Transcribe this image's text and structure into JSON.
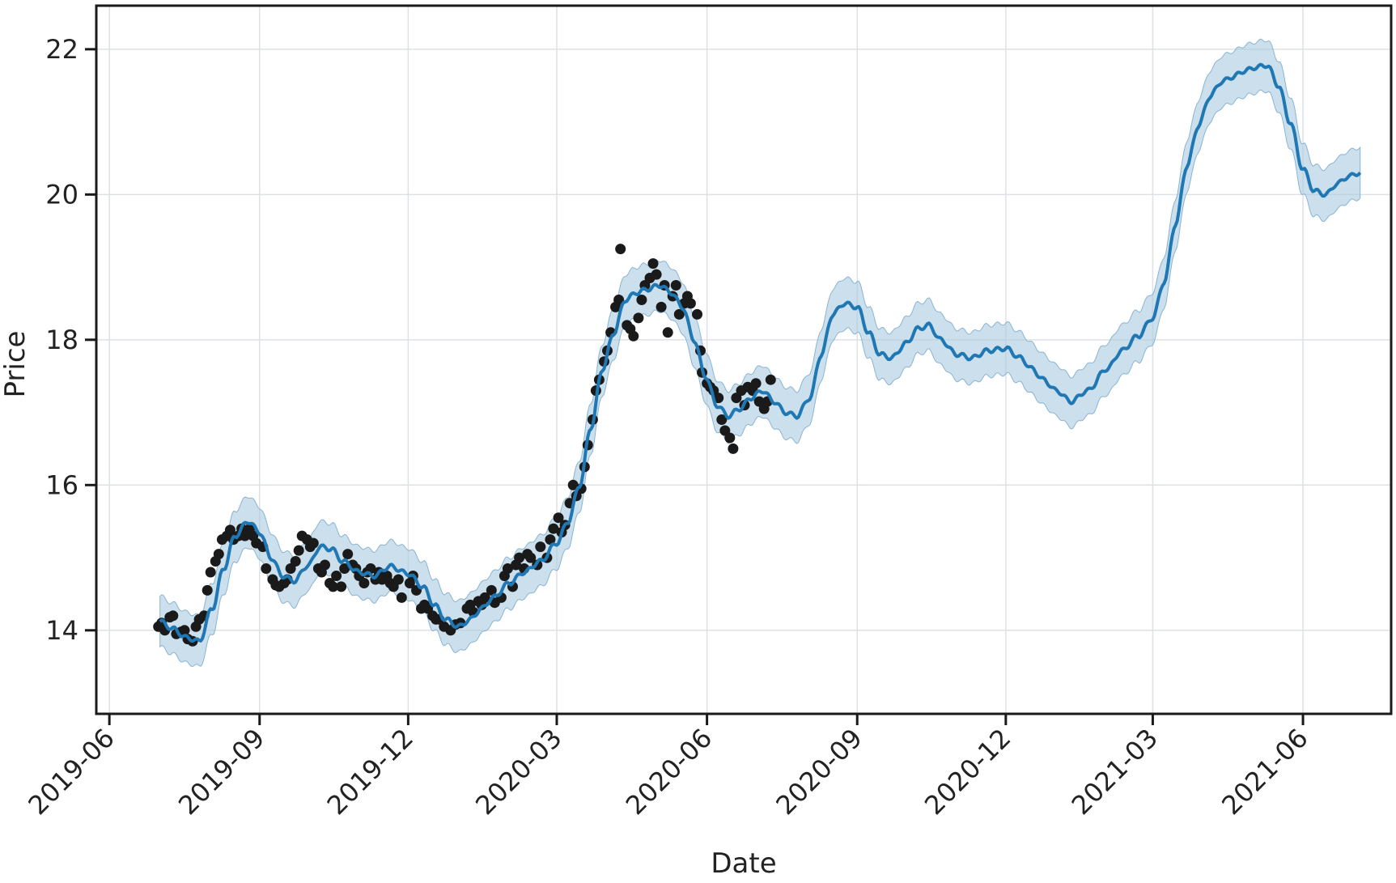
{
  "chart_data": {
    "type": "line",
    "xlabel": "Date",
    "ylabel": "Price",
    "x_ticks": [
      "2019-06",
      "2019-09",
      "2019-12",
      "2020-03",
      "2020-06",
      "2020-09",
      "2020-12",
      "2021-03",
      "2021-06"
    ],
    "y_ticks": [
      14,
      16,
      18,
      20,
      22
    ],
    "xlim": [
      "2019-05-24",
      "2021-07-25"
    ],
    "ylim": [
      12.85,
      22.6
    ],
    "grid": true,
    "legend": "none",
    "colors": {
      "forecast": "#1f77b4",
      "interval": "#a9cbe0",
      "observed": "#1a1a1a"
    },
    "series": [
      {
        "kind": "forecast_line",
        "x": [
          "2019-07-02",
          "2019-07-10",
          "2019-07-18",
          "2019-07-26",
          "2019-08-03",
          "2019-08-10",
          "2019-08-17",
          "2019-08-25",
          "2019-09-01",
          "2019-09-08",
          "2019-09-15",
          "2019-09-22",
          "2019-10-01",
          "2019-10-08",
          "2019-10-15",
          "2019-10-22",
          "2019-11-01",
          "2019-11-10",
          "2019-11-20",
          "2019-12-01",
          "2019-12-10",
          "2019-12-17",
          "2019-12-24",
          "2020-01-01",
          "2020-01-08",
          "2020-01-15",
          "2020-01-22",
          "2020-02-01",
          "2020-02-10",
          "2020-02-20",
          "2020-03-01",
          "2020-03-08",
          "2020-03-15",
          "2020-03-22",
          "2020-03-29",
          "2020-04-05",
          "2020-04-12",
          "2020-04-19",
          "2020-04-26",
          "2020-05-03",
          "2020-05-10",
          "2020-05-17",
          "2020-05-24",
          "2020-05-31",
          "2020-06-07",
          "2020-06-14",
          "2020-06-21",
          "2020-06-28",
          "2020-07-05",
          "2020-07-12",
          "2020-07-19",
          "2020-07-26",
          "2020-08-03",
          "2020-08-10",
          "2020-08-17",
          "2020-08-24",
          "2020-09-01",
          "2020-09-08",
          "2020-09-15",
          "2020-09-22",
          "2020-10-01",
          "2020-10-08",
          "2020-10-15",
          "2020-10-22",
          "2020-11-01",
          "2020-11-10",
          "2020-11-20",
          "2020-12-01",
          "2020-12-10",
          "2020-12-17",
          "2020-12-24",
          "2021-01-01",
          "2021-01-10",
          "2021-01-20",
          "2021-02-01",
          "2021-02-10",
          "2021-02-20",
          "2021-03-01",
          "2021-03-08",
          "2021-03-15",
          "2021-03-22",
          "2021-03-29",
          "2021-04-05",
          "2021-04-12",
          "2021-04-19",
          "2021-04-26",
          "2021-05-03",
          "2021-05-10",
          "2021-05-17",
          "2021-05-24",
          "2021-06-01",
          "2021-06-08",
          "2021-06-15",
          "2021-06-22",
          "2021-06-29",
          "2021-07-06"
        ],
        "y": [
          14.12,
          14.02,
          13.9,
          13.85,
          14.3,
          14.85,
          15.3,
          15.5,
          15.35,
          15.0,
          14.75,
          14.68,
          14.9,
          15.15,
          15.12,
          14.95,
          14.8,
          14.75,
          14.88,
          14.78,
          14.6,
          14.35,
          14.15,
          14.05,
          14.15,
          14.3,
          14.45,
          14.65,
          14.8,
          14.95,
          15.2,
          15.5,
          16.0,
          16.8,
          17.6,
          18.1,
          18.55,
          18.65,
          18.7,
          18.75,
          18.65,
          18.45,
          18.0,
          17.5,
          17.1,
          16.95,
          17.05,
          17.2,
          17.3,
          17.15,
          17.0,
          16.95,
          17.2,
          17.8,
          18.35,
          18.5,
          18.45,
          18.1,
          17.8,
          17.75,
          17.95,
          18.15,
          18.2,
          18.0,
          17.8,
          17.75,
          17.85,
          17.88,
          17.75,
          17.6,
          17.45,
          17.3,
          17.15,
          17.3,
          17.6,
          17.85,
          18.05,
          18.3,
          18.8,
          19.6,
          20.4,
          20.95,
          21.35,
          21.55,
          21.62,
          21.7,
          21.75,
          21.78,
          21.5,
          21.0,
          20.35,
          20.05,
          20.0,
          20.15,
          20.25,
          20.3
        ],
        "interval_halfwidth": 0.35
      },
      {
        "kind": "observed_points",
        "x": [
          "2019-07-01",
          "2019-07-03",
          "2019-07-05",
          "2019-07-08",
          "2019-07-10",
          "2019-07-12",
          "2019-07-15",
          "2019-07-17",
          "2019-07-19",
          "2019-07-22",
          "2019-07-24",
          "2019-07-26",
          "2019-07-29",
          "2019-07-31",
          "2019-08-02",
          "2019-08-05",
          "2019-08-07",
          "2019-08-09",
          "2019-08-12",
          "2019-08-14",
          "2019-08-16",
          "2019-08-19",
          "2019-08-21",
          "2019-08-23",
          "2019-08-26",
          "2019-08-28",
          "2019-08-30",
          "2019-09-03",
          "2019-09-05",
          "2019-09-09",
          "2019-09-11",
          "2019-09-13",
          "2019-09-16",
          "2019-09-18",
          "2019-09-20",
          "2019-09-23",
          "2019-09-25",
          "2019-09-27",
          "2019-09-30",
          "2019-10-02",
          "2019-10-04",
          "2019-10-07",
          "2019-10-09",
          "2019-10-11",
          "2019-10-14",
          "2019-10-16",
          "2019-10-18",
          "2019-10-21",
          "2019-10-23",
          "2019-10-25",
          "2019-10-28",
          "2019-10-30",
          "2019-11-01",
          "2019-11-04",
          "2019-11-06",
          "2019-11-08",
          "2019-11-11",
          "2019-11-13",
          "2019-11-15",
          "2019-11-18",
          "2019-11-20",
          "2019-11-22",
          "2019-11-25",
          "2019-11-27",
          "2019-12-02",
          "2019-12-04",
          "2019-12-06",
          "2019-12-09",
          "2019-12-11",
          "2019-12-13",
          "2019-12-16",
          "2019-12-18",
          "2019-12-20",
          "2019-12-23",
          "2019-12-27",
          "2019-12-30",
          "2020-01-02",
          "2020-01-06",
          "2020-01-08",
          "2020-01-10",
          "2020-01-13",
          "2020-01-15",
          "2020-01-17",
          "2020-01-21",
          "2020-01-23",
          "2020-01-27",
          "2020-01-29",
          "2020-01-31",
          "2020-02-03",
          "2020-02-05",
          "2020-02-07",
          "2020-02-10",
          "2020-02-12",
          "2020-02-14",
          "2020-02-18",
          "2020-02-20",
          "2020-02-24",
          "2020-02-26",
          "2020-02-28",
          "2020-03-02",
          "2020-03-04",
          "2020-03-06",
          "2020-03-09",
          "2020-03-11",
          "2020-03-13",
          "2020-03-16",
          "2020-03-18",
          "2020-03-20",
          "2020-03-23",
          "2020-03-25",
          "2020-03-27",
          "2020-03-30",
          "2020-04-01",
          "2020-04-03",
          "2020-04-06",
          "2020-04-08",
          "2020-04-09",
          "2020-04-13",
          "2020-04-15",
          "2020-04-17",
          "2020-04-20",
          "2020-04-22",
          "2020-04-24",
          "2020-04-27",
          "2020-04-29",
          "2020-05-01",
          "2020-05-04",
          "2020-05-06",
          "2020-05-08",
          "2020-05-11",
          "2020-05-13",
          "2020-05-15",
          "2020-05-18",
          "2020-05-20",
          "2020-05-22",
          "2020-05-26",
          "2020-05-28",
          "2020-05-29",
          "2020-06-01",
          "2020-06-03",
          "2020-06-05",
          "2020-06-08",
          "2020-06-10",
          "2020-06-12",
          "2020-06-15",
          "2020-06-17",
          "2020-06-19",
          "2020-06-22",
          "2020-06-24",
          "2020-06-26",
          "2020-06-29",
          "2020-07-01",
          "2020-07-03",
          "2020-07-06",
          "2020-07-08",
          "2020-07-10"
        ],
        "y": [
          14.05,
          14.1,
          14.0,
          14.18,
          14.2,
          13.95,
          13.98,
          14.0,
          13.88,
          13.85,
          14.05,
          14.15,
          14.2,
          14.55,
          14.8,
          14.95,
          15.05,
          15.25,
          15.3,
          15.38,
          15.25,
          15.3,
          15.4,
          15.3,
          15.4,
          15.3,
          15.2,
          15.15,
          14.85,
          14.7,
          14.62,
          14.6,
          14.65,
          14.7,
          14.85,
          14.95,
          15.1,
          15.3,
          15.25,
          15.15,
          15.2,
          14.85,
          14.8,
          14.9,
          14.65,
          14.6,
          14.75,
          14.6,
          14.85,
          15.05,
          14.9,
          14.85,
          14.75,
          14.65,
          14.8,
          14.85,
          14.7,
          14.8,
          14.7,
          14.75,
          14.65,
          14.6,
          14.7,
          14.45,
          14.65,
          14.75,
          14.55,
          14.3,
          14.35,
          14.3,
          14.2,
          14.15,
          14.15,
          14.05,
          14.0,
          14.08,
          14.1,
          14.3,
          14.35,
          14.25,
          14.4,
          14.35,
          14.45,
          14.55,
          14.38,
          14.45,
          14.75,
          14.85,
          14.6,
          14.9,
          15.0,
          14.85,
          15.05,
          15.0,
          14.9,
          15.15,
          15.0,
          15.25,
          15.4,
          15.55,
          15.35,
          15.45,
          15.75,
          16.0,
          15.85,
          15.95,
          16.25,
          16.55,
          16.9,
          17.3,
          17.45,
          17.7,
          17.85,
          18.1,
          18.45,
          18.55,
          19.25,
          18.2,
          18.15,
          18.05,
          18.3,
          18.55,
          18.75,
          18.85,
          19.05,
          18.9,
          18.45,
          18.75,
          18.1,
          18.6,
          18.75,
          18.35,
          18.5,
          18.6,
          18.5,
          18.35,
          17.85,
          17.55,
          17.4,
          17.35,
          17.3,
          17.2,
          16.9,
          16.75,
          16.65,
          16.5,
          17.2,
          17.3,
          17.1,
          17.35,
          17.3,
          17.4,
          17.15,
          17.05,
          17.15,
          17.45
        ]
      }
    ]
  }
}
